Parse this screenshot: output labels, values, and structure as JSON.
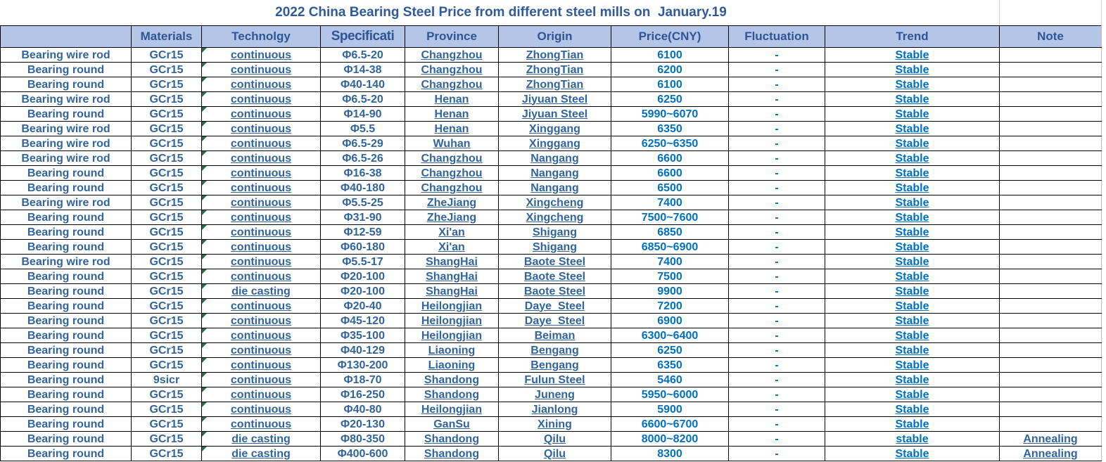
{
  "title": "2022 China Bearing Steel Price from different steel mills on  January.19",
  "colors": {
    "header_bg": "#B4C6E7",
    "header_text": "#2F5597",
    "label_text": "#31659C",
    "value_text": "#0070C0",
    "gridline": "#000000",
    "error_triangle": "#217346"
  },
  "table": {
    "columns": [
      {
        "key": "product",
        "label": ""
      },
      {
        "key": "materials",
        "label": "Materials"
      },
      {
        "key": "technology",
        "label": "Technolgy"
      },
      {
        "key": "specification",
        "label": "Specificati"
      },
      {
        "key": "province",
        "label": "Province"
      },
      {
        "key": "origin",
        "label": "Origin"
      },
      {
        "key": "price",
        "label": "Price(CNY)"
      },
      {
        "key": "fluctuation",
        "label": "Fluctuation"
      },
      {
        "key": "trend",
        "label": "Trend"
      },
      {
        "key": "note",
        "label": "Note"
      }
    ],
    "rows": [
      {
        "product": "Bearing wire rod",
        "materials": "GCr15",
        "technology": "continuous",
        "specification": "Φ6.5-20",
        "province": "Changzhou",
        "origin": "ZhongTian",
        "price": "6100",
        "fluctuation": "-",
        "trend": "Stable",
        "note": ""
      },
      {
        "product": "Bearing round",
        "materials": "GCr15",
        "technology": "continuous",
        "specification": "Φ14-38",
        "province": "Changzhou",
        "origin": "ZhongTian",
        "price": "6200",
        "fluctuation": "-",
        "trend": "Stable",
        "note": ""
      },
      {
        "product": "Bearing round",
        "materials": "GCr15",
        "technology": "continuous",
        "specification": "Φ40-140",
        "province": "Changzhou",
        "origin": "ZhongTian",
        "price": "6100",
        "fluctuation": "-",
        "trend": "Stable",
        "note": ""
      },
      {
        "product": "Bearing wire rod",
        "materials": "GCr15",
        "technology": "continuous",
        "specification": "Φ6.5-20",
        "province": "Henan",
        "origin": "Jiyuan Steel",
        "price": "6250",
        "fluctuation": "-",
        "trend": "Stable",
        "note": ""
      },
      {
        "product": "Bearing round",
        "materials": "GCr15",
        "technology": "continuous",
        "specification": "Φ14-90",
        "province": "Henan",
        "origin": "Jiyuan Steel",
        "price": "5990~6070",
        "fluctuation": "-",
        "trend": "Stable",
        "note": ""
      },
      {
        "product": "Bearing wire rod",
        "materials": "GCr15",
        "technology": "continuous",
        "specification": "Φ5.5",
        "province": "Henan",
        "origin": "Xinggang",
        "price": "6350",
        "fluctuation": "-",
        "trend": "Stable",
        "note": ""
      },
      {
        "product": "Bearing wire rod",
        "materials": "GCr15",
        "technology": "continuous",
        "specification": "Φ6.5-29",
        "province": "Wuhan",
        "origin": "Xinggang",
        "price": "6250~6350",
        "fluctuation": "-",
        "trend": "Stable",
        "note": ""
      },
      {
        "product": "Bearing wire rod",
        "materials": "GCr15",
        "technology": "continuous",
        "specification": "Φ6.5-26",
        "province": "Changzhou",
        "origin": "Nangang",
        "price": "6600",
        "fluctuation": "-",
        "trend": "Stable",
        "note": ""
      },
      {
        "product": "Bearing round",
        "materials": "GCr15",
        "technology": "continuous",
        "specification": "Φ16-38",
        "province": "Changzhou",
        "origin": "Nangang",
        "price": "6600",
        "fluctuation": "-",
        "trend": "Stable",
        "note": ""
      },
      {
        "product": "Bearing round",
        "materials": "GCr15",
        "technology": "continuous",
        "specification": "Φ40-180",
        "province": "Changzhou",
        "origin": "Nangang",
        "price": "6500",
        "fluctuation": "-",
        "trend": "Stable",
        "note": ""
      },
      {
        "product": "Bearing wire rod",
        "materials": "GCr15",
        "technology": "continuous",
        "specification": "Φ5.5-25",
        "province": "ZheJiang",
        "origin": "Xingcheng",
        "price": "7400",
        "fluctuation": "-",
        "trend": "Stable",
        "note": ""
      },
      {
        "product": "Bearing round",
        "materials": "GCr15",
        "technology": "continuous",
        "specification": "Φ31-90",
        "province": "ZheJiang",
        "origin": "Xingcheng",
        "price": "7500~7600",
        "fluctuation": "-",
        "trend": "Stable",
        "note": ""
      },
      {
        "product": "Bearing round",
        "materials": "GCr15",
        "technology": "continuous",
        "specification": "Φ12-59",
        "province": "Xi'an",
        "origin": "Shigang",
        "price": "6850",
        "fluctuation": "-",
        "trend": "Stable",
        "note": ""
      },
      {
        "product": "Bearing round",
        "materials": "GCr15",
        "technology": "continuous",
        "specification": "Φ60-180",
        "province": "Xi'an",
        "origin": "Shigang",
        "price": "6850~6900",
        "fluctuation": "-",
        "trend": "Stable",
        "note": ""
      },
      {
        "product": "Bearing wire rod",
        "materials": "GCr15",
        "technology": "continuous",
        "specification": "Φ5.5-17",
        "province": "ShangHai",
        "origin": "Baote Steel",
        "price": "7400",
        "fluctuation": "-",
        "trend": "Stable",
        "note": ""
      },
      {
        "product": "Bearing round",
        "materials": "GCr15",
        "technology": "continuous",
        "specification": "Φ20-100",
        "province": "ShangHai",
        "origin": "Baote Steel",
        "price": "7500",
        "fluctuation": "-",
        "trend": "Stable",
        "note": ""
      },
      {
        "product": "Bearing round",
        "materials": "GCr15",
        "technology": "die casting",
        "specification": "Φ20-100",
        "province": "ShangHai",
        "origin": "Baote Steel",
        "price": "9900",
        "fluctuation": "-",
        "trend": "Stable",
        "note": ""
      },
      {
        "product": "Bearing round",
        "materials": "GCr15",
        "technology": "continuous",
        "specification": "Φ20-40",
        "province": "Heilongjian",
        "origin": "Daye  Steel",
        "price": "7200",
        "fluctuation": "-",
        "trend": "Stable",
        "note": ""
      },
      {
        "product": "Bearing round",
        "materials": "GCr15",
        "technology": "continuous",
        "specification": "Φ45-120",
        "province": "Heilongjian",
        "origin": "Daye  Steel",
        "price": "6900",
        "fluctuation": "-",
        "trend": "Stable",
        "note": ""
      },
      {
        "product": "Bearing round",
        "materials": "GCr15",
        "technology": "continuous",
        "specification": "Φ35-100",
        "province": "Heilongjian",
        "origin": "Beiman",
        "price": "6300~6400",
        "fluctuation": "-",
        "trend": "Stable",
        "note": ""
      },
      {
        "product": "Bearing round",
        "materials": "GCr15",
        "technology": "continuous",
        "specification": "Φ40-129",
        "province": "Liaoning",
        "origin": "Bengang",
        "price": "6250",
        "fluctuation": "-",
        "trend": "Stable",
        "note": ""
      },
      {
        "product": "Bearing round",
        "materials": "GCr15",
        "technology": "continuous",
        "specification": "Φ130-200",
        "province": "Liaoning",
        "origin": "Bengang",
        "price": "6350",
        "fluctuation": "-",
        "trend": "Stable",
        "note": ""
      },
      {
        "product": "Bearing round",
        "materials": "9sicr",
        "technology": "continuous",
        "specification": "Φ18-70",
        "province": "Shandong",
        "origin": "Fulun Steel",
        "price": "5460",
        "fluctuation": "-",
        "trend": "Stable",
        "note": ""
      },
      {
        "product": "Bearing round",
        "materials": "GCr15",
        "technology": "continuous",
        "specification": "Φ16-250",
        "province": "Shandong",
        "origin": "Juneng",
        "price": "5950~6000",
        "fluctuation": "-",
        "trend": "Stable",
        "note": ""
      },
      {
        "product": "Bearing round",
        "materials": "GCr15",
        "technology": "continuous",
        "specification": "Φ40-80",
        "province": "Heilongjian",
        "origin": "Jianlong",
        "price": "5900",
        "fluctuation": "-",
        "trend": "Stable",
        "note": ""
      },
      {
        "product": "Bearing round",
        "materials": "GCr15",
        "technology": "continuous",
        "specification": "Φ20-130",
        "province": "GanSu",
        "origin": "Xining",
        "price": "6600~6700",
        "fluctuation": "-",
        "trend": "Stable",
        "note": ""
      },
      {
        "product": "Bearing round",
        "materials": "GCr15",
        "technology": "die casting",
        "specification": "Φ80-350",
        "province": "Shandong",
        "origin": "Qilu",
        "price": "8000~8200",
        "fluctuation": "-",
        "trend": "stable",
        "note": "Annealing"
      },
      {
        "product": "Bearing round",
        "materials": "GCr15",
        "technology": "die casting",
        "specification": "Φ400-600",
        "province": "Shandong",
        "origin": "Qilu",
        "price": "8300",
        "fluctuation": "-",
        "trend": "Stable",
        "note": "Annealing"
      }
    ]
  }
}
